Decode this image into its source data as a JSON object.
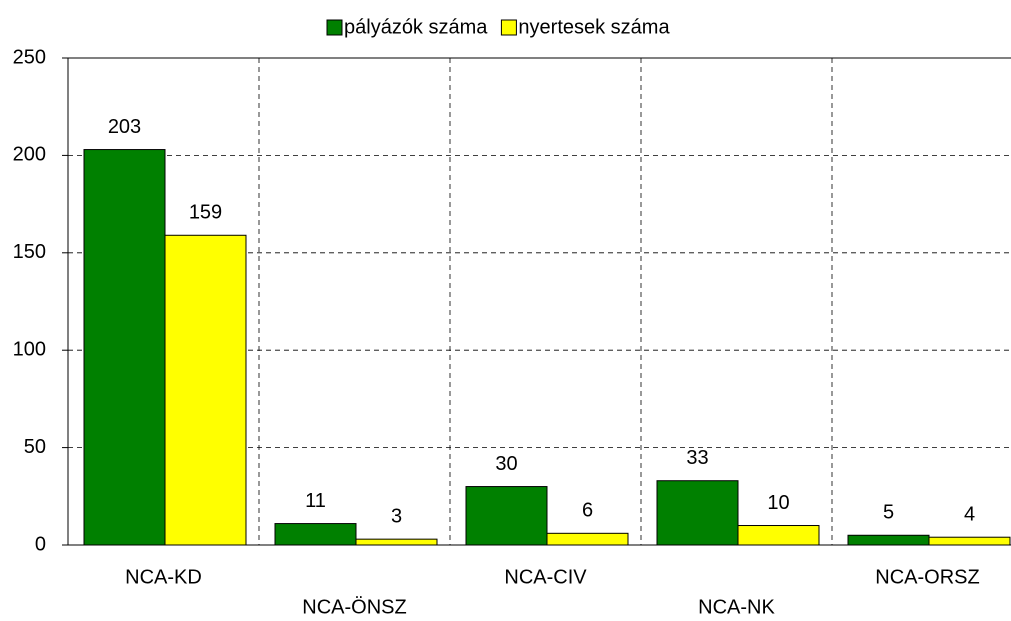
{
  "chart_data": {
    "type": "bar",
    "categories": [
      "NCA-KD",
      "NCA-ÖNSZ",
      "NCA-CIV",
      "NCA-NK",
      "NCA-ORSZ"
    ],
    "series": [
      {
        "name": "pályázók száma",
        "color": "#008000",
        "values": [
          203,
          11,
          30,
          33,
          5
        ]
      },
      {
        "name": "nyertesek száma",
        "color": "#ffff00",
        "values": [
          159,
          3,
          6,
          10,
          4
        ]
      }
    ],
    "ylim": [
      0,
      250
    ],
    "yticks": [
      0,
      50,
      100,
      150,
      200,
      250
    ],
    "grid": true,
    "legend": "top"
  }
}
